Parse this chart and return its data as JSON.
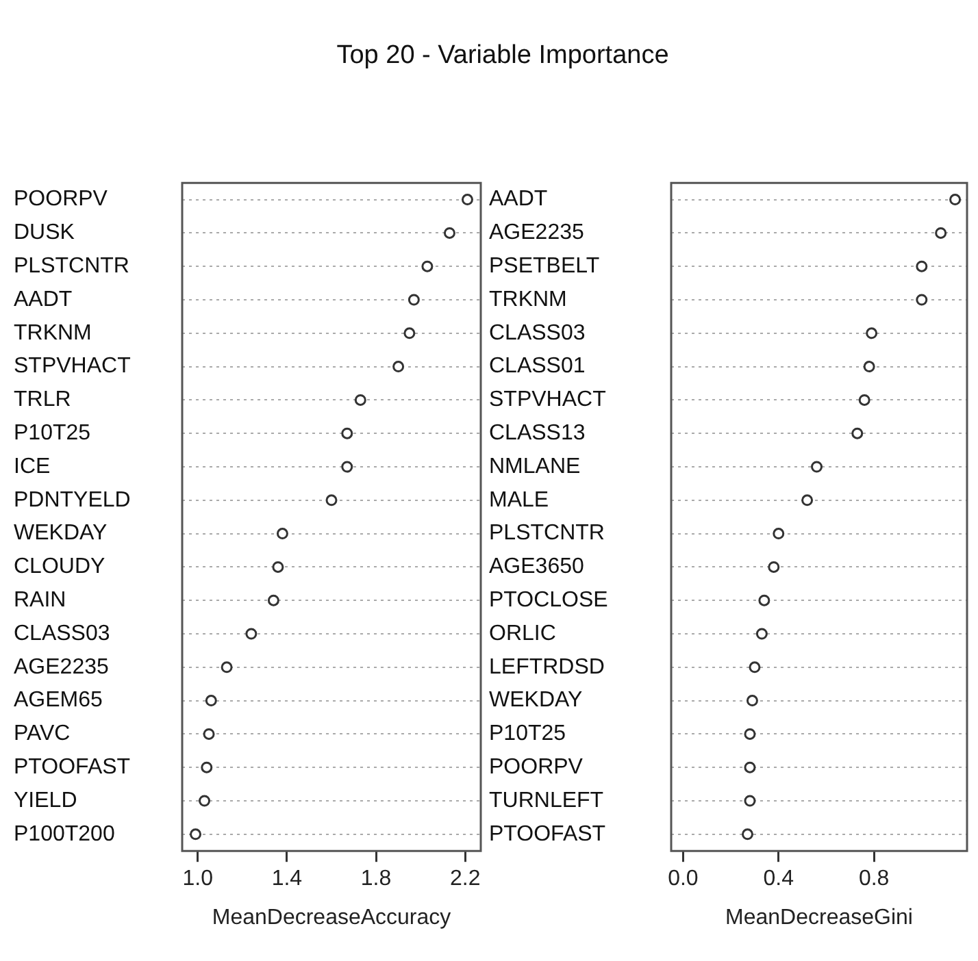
{
  "chart_data": [
    {
      "type": "scatter",
      "title": "Top 20 - Variable Importance",
      "orientation": "horizontal",
      "xlabel": "MeanDecreaseAccuracy",
      "categories": [
        "POORPV",
        "DUSK",
        "PLSTCNTR",
        "AADT",
        "TRKNM",
        "STPVHACT",
        "TRLR",
        "P10T25",
        "ICE",
        "PDNTYELD",
        "WEKDAY",
        "CLOUDY",
        "RAIN",
        "CLASS03",
        "AGE2235",
        "AGEM65",
        "PAVC",
        "PTOOFAST",
        "YIELD",
        "P100T200"
      ],
      "values": [
        2.21,
        2.13,
        2.03,
        1.97,
        1.95,
        1.9,
        1.73,
        1.67,
        1.67,
        1.6,
        1.38,
        1.36,
        1.34,
        1.24,
        1.13,
        1.06,
        1.05,
        1.04,
        1.03,
        0.99
      ],
      "color": "#333333",
      "marker": "circle",
      "grid": "y",
      "xlim": [
        0.93,
        2.27
      ],
      "xticks": [
        {
          "value": 1,
          "label": "1.0"
        },
        1.4,
        1.8,
        2.2
      ]
    },
    {
      "type": "scatter",
      "orientation": "horizontal",
      "xlabel": "MeanDecreaseGini",
      "categories": [
        "AADT",
        "AGE2235",
        "PSETBELT",
        "TRKNM",
        "CLASS03",
        "CLASS01",
        "STPVHACT",
        "CLASS13",
        "NMLANE",
        "MALE",
        "PLSTCNTR",
        "AGE3650",
        "PTOCLOSE",
        "ORLIC",
        "LEFTRDSD",
        "WEKDAY",
        "P10T25",
        "POORPV",
        "TURNLEFT",
        "PTOOFAST"
      ],
      "values": [
        1.14,
        1.08,
        1.0,
        1.0,
        0.79,
        0.78,
        0.76,
        0.73,
        0.56,
        0.52,
        0.4,
        0.38,
        0.34,
        0.33,
        0.3,
        0.29,
        0.28,
        0.28,
        0.28,
        0.27
      ],
      "color": "#333333",
      "marker": "circle",
      "grid": "y",
      "xlim": [
        -0.05,
        1.19
      ],
      "xticks": [
        {
          "value": 0,
          "label": "0.0"
        },
        0.4,
        0.8
      ]
    }
  ]
}
